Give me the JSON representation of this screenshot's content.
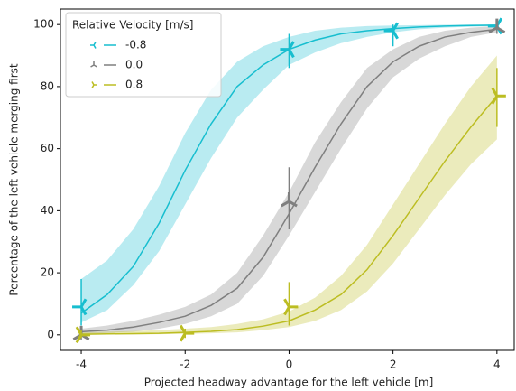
{
  "chart_data": {
    "type": "line",
    "x_label": "Projected headway advantage for the left vehicle [m]",
    "y_label": "Percentage of the left vehicle merging first",
    "legend_title": "Relative Velocity [m/s]",
    "legend": "upper left",
    "xlim": [
      -4.4,
      4.35
    ],
    "ylim": [
      -5,
      105
    ],
    "xticks": [
      -4,
      -2,
      0,
      2,
      4
    ],
    "yticks": [
      0,
      20,
      40,
      60,
      80,
      100
    ],
    "x": [
      -4,
      -3.5,
      -3,
      -2.5,
      -2,
      -1.5,
      -1,
      -0.5,
      0,
      0.5,
      1,
      1.5,
      2,
      2.5,
      3,
      3.5,
      4
    ],
    "series": [
      {
        "name": "-0.8",
        "color": "#17becf",
        "marker": "tri_left",
        "values": [
          7,
          13,
          22,
          36,
          53,
          68,
          80,
          87,
          92,
          95,
          97,
          98,
          98.7,
          99.2,
          99.5,
          99.7,
          99.8
        ],
        "lower": [
          4,
          8,
          16,
          27,
          42,
          57,
          70,
          79,
          87,
          91,
          94,
          96,
          97.5,
          98.5,
          99,
          99.3,
          99.5
        ],
        "upper": [
          18,
          24,
          34,
          48,
          65,
          79,
          88,
          93,
          96,
          98,
          99,
          99.5,
          99.7,
          99.8,
          99.9,
          100,
          100
        ],
        "points": {
          "x": [
            -4,
            0,
            2,
            4
          ],
          "y": [
            9,
            92,
            98,
            99.5
          ],
          "ylow": [
            3,
            86,
            93,
            98
          ],
          "yhigh": [
            18,
            97,
            100,
            101
          ]
        }
      },
      {
        "name": "0.0",
        "color": "#7f7f7f",
        "marker": "tri_down",
        "values": [
          1,
          1.5,
          2.5,
          4,
          6,
          9.5,
          15,
          25,
          39,
          54,
          68,
          80,
          88,
          93,
          96,
          97.5,
          98.5
        ],
        "lower": [
          0.3,
          0.6,
          1,
          2,
          3.5,
          6,
          10,
          19,
          32,
          46,
          60,
          73,
          83,
          89,
          93,
          96,
          97.5
        ],
        "upper": [
          2,
          3,
          4.5,
          6.5,
          9,
          13,
          20,
          32,
          46,
          62,
          75,
          86,
          92,
          96,
          98,
          99,
          99.5
        ],
        "points": {
          "x": [
            -4,
            0,
            4
          ],
          "y": [
            0,
            43,
            99
          ],
          "ylow": [
            -1.5,
            34,
            97
          ],
          "yhigh": [
            1.5,
            54,
            101
          ]
        }
      },
      {
        "name": "0.8",
        "color": "#bcbd22",
        "marker": "tri_right",
        "values": [
          0.2,
          0.3,
          0.4,
          0.5,
          0.8,
          1.1,
          1.7,
          2.8,
          4.5,
          8,
          13,
          21,
          32,
          44,
          56,
          67,
          77
        ],
        "lower": [
          0,
          0.1,
          0.1,
          0.2,
          0.3,
          0.5,
          0.8,
          1.5,
          2.5,
          4.5,
          8,
          14,
          23,
          34,
          45,
          55,
          63
        ],
        "upper": [
          0.8,
          1,
          1.2,
          1.5,
          2,
          2.5,
          3.5,
          5,
          7.5,
          12,
          19,
          29,
          42,
          55,
          68,
          80,
          90
        ],
        "points": {
          "x": [
            -4,
            -2,
            0,
            4
          ],
          "y": [
            0,
            0.5,
            9,
            77
          ],
          "ylow": [
            -1,
            -1,
            3,
            67
          ],
          "yhigh": [
            1.5,
            2,
            17,
            86
          ]
        }
      }
    ]
  }
}
